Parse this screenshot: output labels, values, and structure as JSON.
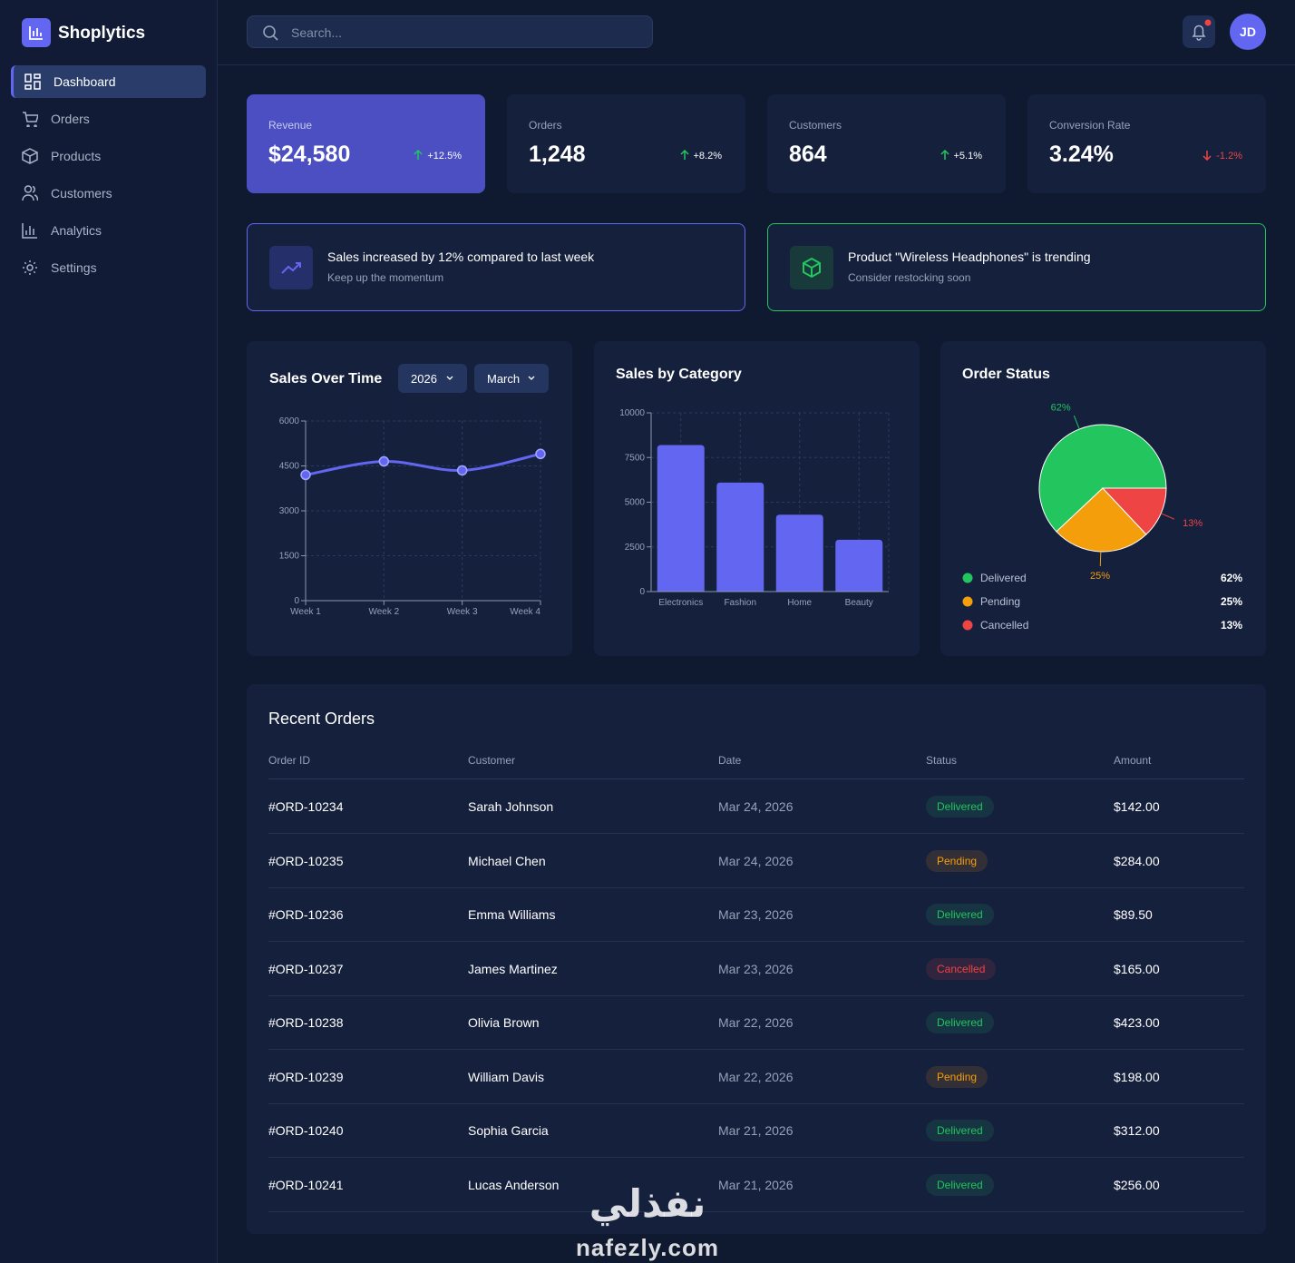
{
  "sidebar": {
    "brand": "Shoplytics",
    "nav": [
      "Dashboard",
      "Orders",
      "Products",
      "Customers",
      "Analytics",
      "Settings"
    ]
  },
  "header": {
    "search_placeholder": "Search...",
    "avatar": "JD"
  },
  "kpis": [
    {
      "label": "Revenue",
      "value": "$24,580",
      "change": "+12.5%",
      "trend": "up"
    },
    {
      "label": "Orders",
      "value": "1,248",
      "change": "+8.2%",
      "trend": "up"
    },
    {
      "label": "Customers",
      "value": "864",
      "change": "+5.1%",
      "trend": "up"
    },
    {
      "label": "Conversion Rate",
      "value": "3.24%",
      "change": "-1.2%",
      "trend": "down"
    }
  ],
  "alerts": [
    {
      "title": "Sales increased by 12% compared to last week",
      "subtitle": "Keep up the momentum",
      "color": "#6366f1"
    },
    {
      "title": "Product \"Wireless Headphones\" is trending",
      "subtitle": "Consider restocking soon",
      "color": "#22c55e"
    }
  ],
  "chart_data": [
    {
      "type": "line",
      "title": "Sales Over Time",
      "filters": [
        "2026",
        "March"
      ],
      "categories": [
        "Week 1",
        "Week 2",
        "Week 3",
        "Week 4"
      ],
      "values": [
        4200,
        4650,
        4350,
        4900
      ],
      "color": "#6366f1",
      "ylim": [
        0,
        6000
      ],
      "yticks": [
        0,
        1500,
        3000,
        4500,
        6000
      ],
      "grid": true
    },
    {
      "type": "bar",
      "title": "Sales by Category",
      "categories": [
        "Electronics",
        "Fashion",
        "Home",
        "Beauty"
      ],
      "values": [
        8200,
        6100,
        4300,
        2900
      ],
      "color": "#6366f1",
      "ylim": [
        0,
        10000
      ],
      "yticks": [
        0,
        2500,
        5000,
        7500,
        10000
      ],
      "grid": true
    },
    {
      "type": "pie",
      "title": "Order Status",
      "categories": [
        "Delivered",
        "Pending",
        "Cancelled"
      ],
      "values": [
        62,
        25,
        13
      ],
      "value_labels": [
        "62%",
        "25%",
        "13%"
      ],
      "colors": [
        "#22c55e",
        "#f59e0b",
        "#ef4444"
      ]
    }
  ],
  "orders": {
    "title": "Recent Orders",
    "columns": [
      "Order ID",
      "Customer",
      "Date",
      "Status",
      "Amount"
    ],
    "rows": [
      [
        "#ORD-10234",
        "Sarah Johnson",
        "Mar 24, 2026",
        "Delivered",
        "$142.00"
      ],
      [
        "#ORD-10235",
        "Michael Chen",
        "Mar 24, 2026",
        "Pending",
        "$284.00"
      ],
      [
        "#ORD-10236",
        "Emma Williams",
        "Mar 23, 2026",
        "Delivered",
        "$89.50"
      ],
      [
        "#ORD-10237",
        "James Martinez",
        "Mar 23, 2026",
        "Cancelled",
        "$165.00"
      ],
      [
        "#ORD-10238",
        "Olivia Brown",
        "Mar 22, 2026",
        "Delivered",
        "$423.00"
      ],
      [
        "#ORD-10239",
        "William Davis",
        "Mar 22, 2026",
        "Pending",
        "$198.00"
      ],
      [
        "#ORD-10240",
        "Sophia Garcia",
        "Mar 21, 2026",
        "Delivered",
        "$312.00"
      ],
      [
        "#ORD-10241",
        "Lucas Anderson",
        "Mar 21, 2026",
        "Delivered",
        "$256.00"
      ]
    ]
  },
  "watermark": {
    "logo": "نفذلي",
    "url": "nafezly.com"
  }
}
